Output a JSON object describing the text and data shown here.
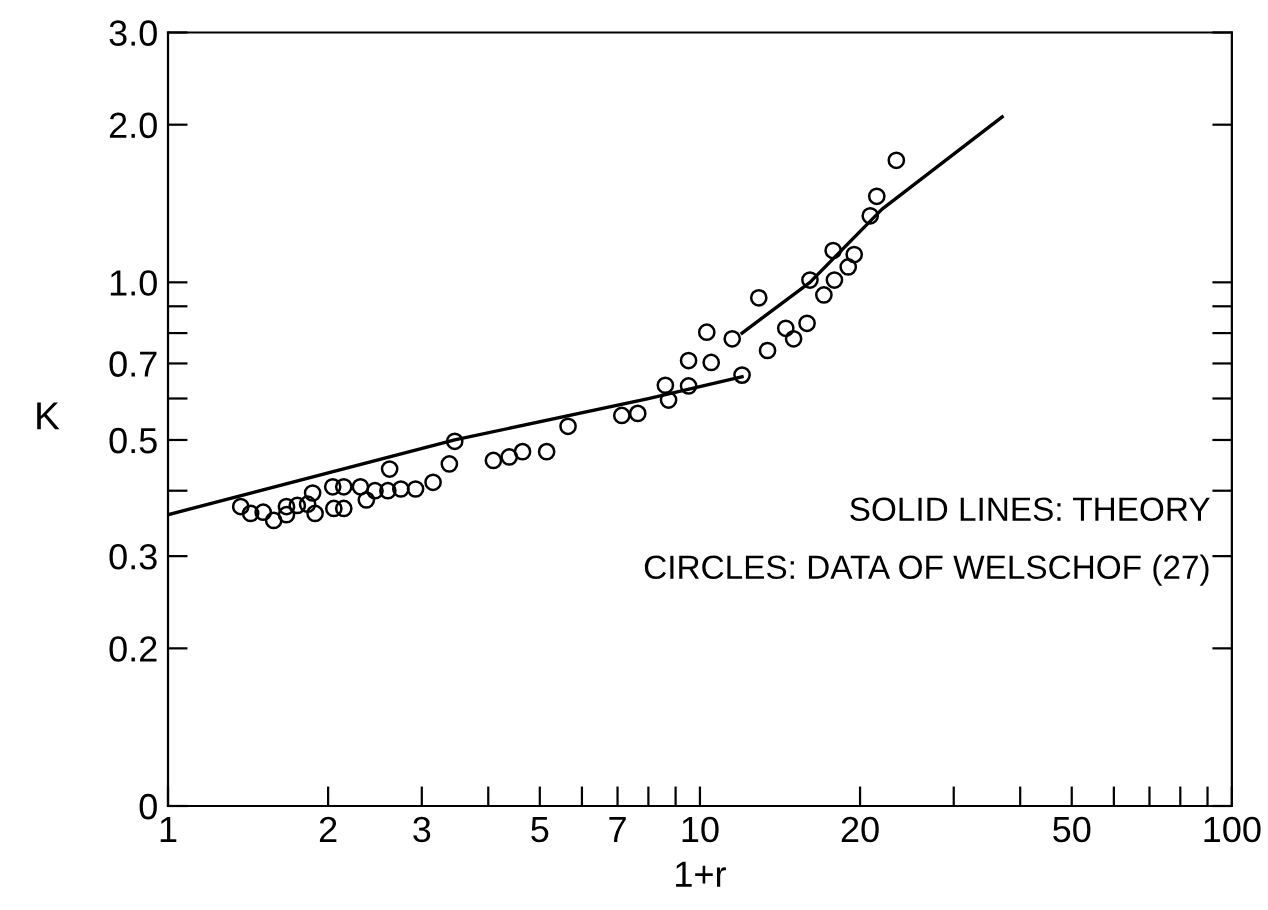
{
  "chart_data": {
    "type": "scatter",
    "xlabel": "1+r",
    "ylabel": "K",
    "log": "xy",
    "xlim": [
      1,
      100
    ],
    "ylim": [
      0.1,
      3.0
    ],
    "xticks": [
      1,
      2,
      3,
      {
        "value": 4,
        "label": null
      },
      5,
      {
        "value": 6,
        "label": null
      },
      7,
      {
        "value": 8,
        "label": null
      },
      {
        "value": 9,
        "label": null
      },
      10,
      20,
      {
        "value": 30,
        "label": null
      },
      {
        "value": 40,
        "label": null
      },
      50,
      {
        "value": 60,
        "label": null
      },
      {
        "value": 70,
        "label": null
      },
      {
        "value": 80,
        "label": null
      },
      {
        "value": 90,
        "label": null
      },
      100
    ],
    "yticks": [
      {
        "value": 0.1,
        "label": "0"
      },
      0.2,
      0.3,
      {
        "value": 0.4,
        "label": null
      },
      0.5,
      {
        "value": 0.6,
        "label": null
      },
      0.7,
      {
        "value": 0.8,
        "label": null
      },
      {
        "value": 0.9,
        "label": null
      },
      {
        "value": 1.0,
        "label": "1.0"
      },
      {
        "value": 2.0,
        "label": "2.0"
      },
      {
        "value": 3.0,
        "label": "3.0"
      }
    ],
    "grid": false,
    "annotations": [
      "SOLID LINES: THEORY",
      "CIRCLES: DATA OF WELSCHOF (27)"
    ],
    "series": [
      {
        "type": "line",
        "color": "#000000",
        "marker": "none",
        "line_style": "solid",
        "x": [
          1,
          3.46,
          8,
          12
        ],
        "values": [
          0.36,
          0.5,
          0.6,
          0.66
        ]
      },
      {
        "type": "line",
        "color": "#000000",
        "marker": "none",
        "line_style": "solid",
        "x": [
          12,
          16.1,
          22,
          37
        ],
        "values": [
          0.8,
          1.0,
          1.38,
          2.07
        ]
      },
      {
        "color": "#000000",
        "marker": "circle",
        "x": [
          1.37,
          1.43,
          1.51,
          1.58,
          1.67,
          1.67,
          1.75,
          1.83,
          1.87,
          1.89,
          2.04,
          2.05,
          2.14,
          2.14,
          2.3,
          2.36,
          2.45,
          2.59,
          2.61,
          2.74,
          2.92,
          3.15,
          3.38,
          3.46,
          4.09,
          4.38,
          4.64,
          5.15,
          5.65,
          7.13,
          7.64,
          8.61,
          8.73,
          9.52,
          9.52,
          10.3,
          10.5,
          11.5,
          12.0,
          12.9,
          13.4,
          14.5,
          15.0,
          15.9,
          16.1,
          17.1,
          17.8,
          17.9,
          19.0,
          19.5,
          20.9,
          21.5,
          23.4
        ],
        "values": [
          0.373,
          0.362,
          0.364,
          0.351,
          0.36,
          0.373,
          0.375,
          0.377,
          0.396,
          0.362,
          0.407,
          0.37,
          0.407,
          0.37,
          0.407,
          0.384,
          0.4,
          0.4,
          0.44,
          0.403,
          0.403,
          0.415,
          0.45,
          0.497,
          0.457,
          0.464,
          0.475,
          0.475,
          0.531,
          0.557,
          0.562,
          0.636,
          0.596,
          0.709,
          0.634,
          0.803,
          0.703,
          0.78,
          0.665,
          0.934,
          0.741,
          0.817,
          0.78,
          0.835,
          1.01,
          0.946,
          1.15,
          1.01,
          1.07,
          1.13,
          1.34,
          1.46,
          1.71
        ]
      }
    ]
  }
}
